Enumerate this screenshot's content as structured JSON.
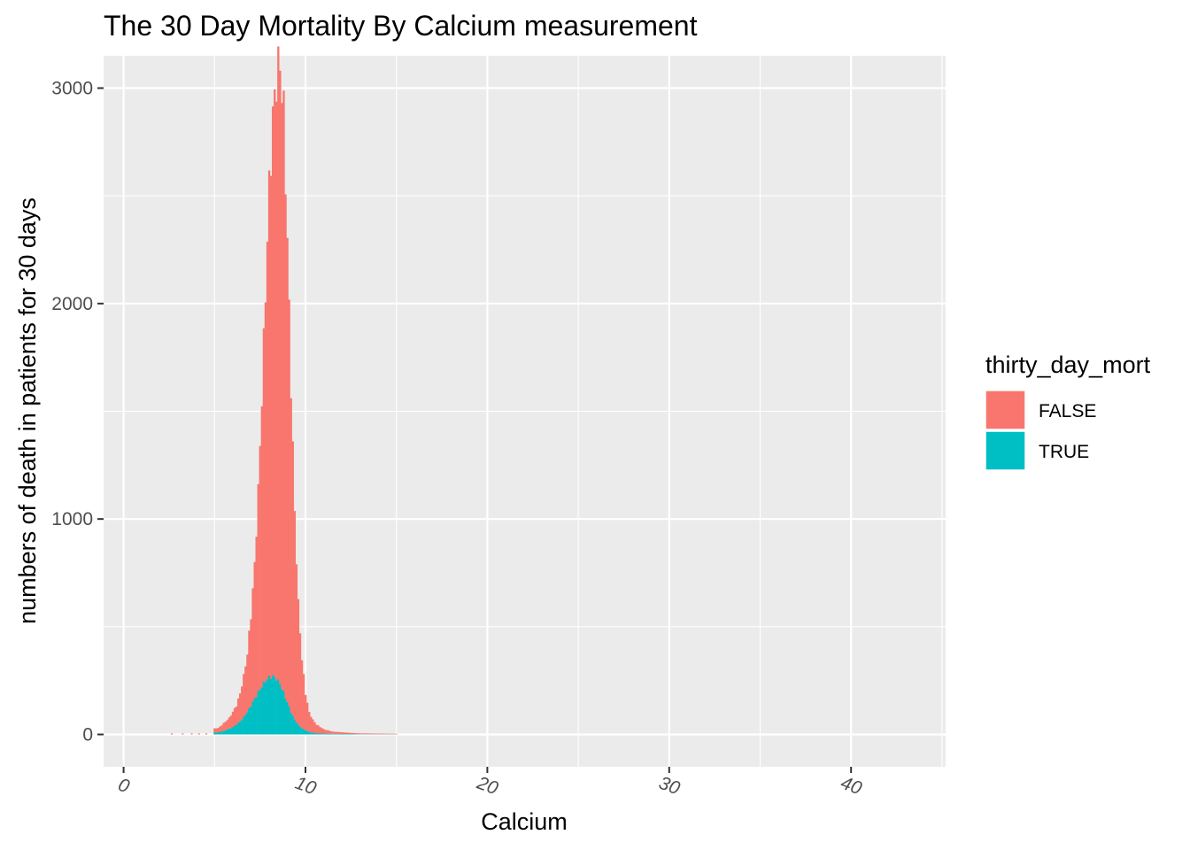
{
  "chart_data": {
    "type": "bar",
    "stacked": true,
    "title": "The 30 Day Mortality By Calcium measurement",
    "xlabel": "Calcium",
    "ylabel": "numbers of death in patients for 30 days",
    "xlim": [
      -1.1,
      45.2
    ],
    "ylim": [
      -150,
      3150
    ],
    "x_ticks": [
      "0",
      "10",
      "20",
      "30",
      "40"
    ],
    "y_ticks": [
      "0",
      "1000",
      "2000",
      "3000"
    ],
    "bin_width": 0.1,
    "grid": true,
    "legend": {
      "title": "thirty_day_mort",
      "position": "right",
      "entries": [
        {
          "label": "FALSE",
          "color": "#F8766D"
        },
        {
          "label": "TRUE",
          "color": "#00BFC4"
        }
      ]
    },
    "series": [
      {
        "name": "FALSE",
        "color": "#F8766D",
        "x": [
          5.0,
          5.2,
          5.4,
          5.6,
          5.8,
          6.0,
          6.2,
          6.4,
          6.6,
          6.8,
          7.0,
          7.2,
          7.4,
          7.6,
          7.8,
          8.0,
          8.2,
          8.4,
          8.6,
          8.8,
          9.0,
          9.2,
          9.4,
          9.6,
          9.8,
          10.0,
          10.2,
          10.4,
          10.6,
          10.8,
          11.0,
          11.5,
          12.0,
          12.5,
          13.0,
          14.0,
          15.0
        ],
        "values": [
          20,
          20,
          30,
          40,
          50,
          70,
          90,
          130,
          190,
          270,
          420,
          620,
          930,
          1340,
          1810,
          2270,
          2590,
          2790,
          2880,
          2680,
          2150,
          1520,
          960,
          560,
          320,
          170,
          90,
          60,
          40,
          30,
          20,
          10,
          8,
          5,
          4,
          3,
          2
        ]
      },
      {
        "name": "TRUE",
        "color": "#00BFC4",
        "x": [
          5.0,
          5.2,
          5.4,
          5.6,
          5.8,
          6.0,
          6.2,
          6.4,
          6.6,
          6.8,
          7.0,
          7.2,
          7.4,
          7.6,
          7.8,
          8.0,
          8.2,
          8.4,
          8.6,
          8.8,
          9.0,
          9.2,
          9.4,
          9.6,
          9.8,
          10.0,
          10.2,
          10.4,
          10.6,
          10.8,
          11.0,
          11.5,
          12.0,
          12.5,
          13.0,
          14.0,
          15.0
        ],
        "values": [
          8,
          10,
          14,
          20,
          26,
          35,
          45,
          60,
          80,
          105,
          135,
          165,
          195,
          225,
          250,
          265,
          270,
          260,
          235,
          195,
          150,
          105,
          70,
          45,
          30,
          20,
          12,
          8,
          6,
          5,
          4,
          3,
          2,
          2,
          1,
          1,
          1
        ]
      }
    ]
  }
}
